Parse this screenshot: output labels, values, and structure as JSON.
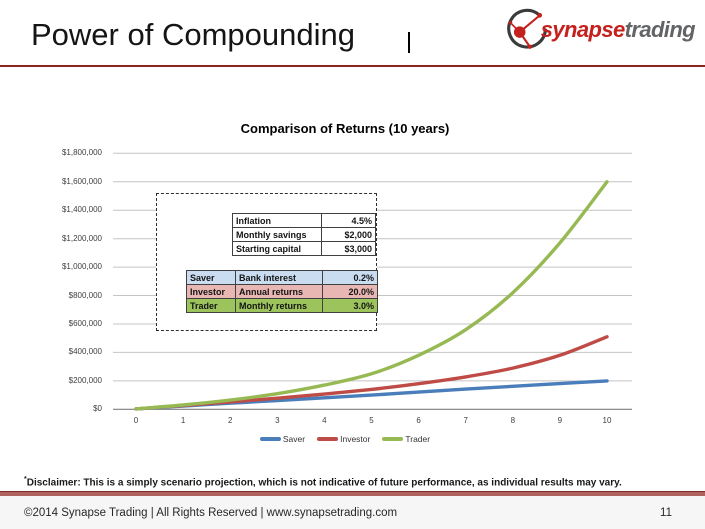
{
  "header": {
    "title": "Power of Compounding"
  },
  "logo": {
    "brand_primary": "synapse",
    "brand_secondary": "trading",
    "primary_color": "#c4201d",
    "secondary_color": "#636466"
  },
  "chart_data": {
    "type": "line",
    "title": "Comparison of Returns (10 years)",
    "x": [
      0,
      1,
      2,
      3,
      4,
      5,
      6,
      7,
      8,
      9,
      10
    ],
    "xlabel": "",
    "ylabel": "",
    "ylim": [
      0,
      1800000
    ],
    "y_tick_labels": [
      "$0",
      "$200,000",
      "$400,000",
      "$600,000",
      "$800,000",
      "$1,000,000",
      "$1,200,000",
      "$1,400,000",
      "$1,600,000",
      "$1,800,000"
    ],
    "grid": true,
    "legend_position": "bottom",
    "series": [
      {
        "name": "Saver",
        "color": "#4a7ebb",
        "values": [
          3000,
          23000,
          43000,
          62000,
          81000,
          100000,
          121000,
          142000,
          162000,
          181000,
          200000
        ]
      },
      {
        "name": "Investor",
        "color": "#bf4b47",
        "values": [
          3000,
          27000,
          52000,
          78000,
          107000,
          140000,
          180000,
          228000,
          290000,
          380000,
          510000
        ]
      },
      {
        "name": "Trader",
        "color": "#97b954",
        "values": [
          3000,
          30000,
          65000,
          110000,
          170000,
          250000,
          380000,
          560000,
          820000,
          1170000,
          1600000
        ]
      }
    ]
  },
  "assumptions": {
    "parameters": [
      {
        "label": "Inflation",
        "value": "4.5%"
      },
      {
        "label": "Monthly savings",
        "value": "$2,000"
      },
      {
        "label": "Starting capital",
        "value": "$3,000"
      }
    ],
    "strategies": [
      {
        "name": "Saver",
        "metric": "Bank interest",
        "value": "0.2%",
        "fill": "#c9dcf0"
      },
      {
        "name": "Investor",
        "metric": "Annual returns",
        "value": "20.0%",
        "fill": "#e8b6b3"
      },
      {
        "name": "Trader",
        "metric": "Monthly returns",
        "value": "3.0%",
        "fill": "#9cc35c"
      }
    ]
  },
  "disclaimer": {
    "mark": "*",
    "text": "Disclaimer: This is a simply scenario projection, which is not indicative of future performance, as individual results may vary."
  },
  "footer": {
    "copyright": "©2014 Synapse Trading | All Rights Reserved | www.synapsetrading.com",
    "page_number": "11"
  }
}
